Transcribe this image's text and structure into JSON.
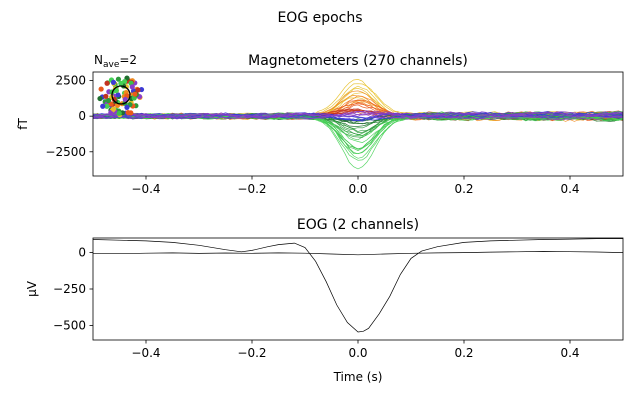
{
  "figure": {
    "suptitle": "EOG epochs"
  },
  "chart_data": [
    {
      "type": "line",
      "title": "Magnetometers (270 channels)",
      "nave_label": {
        "prefix": "N",
        "subscript": "ave",
        "suffix": "=2"
      },
      "xlabel": "",
      "ylabel": "fT",
      "xlim": [
        -0.5,
        0.5
      ],
      "ylim": [
        -4200,
        3100
      ],
      "xticks": [
        -0.4,
        -0.2,
        0.0,
        0.2,
        0.4
      ],
      "xtick_labels": [
        "−0.4",
        "−0.2",
        "0.0",
        "0.2",
        "0.4"
      ],
      "yticks": [
        2500,
        0,
        -2500
      ],
      "ytick_labels": [
        "2500",
        "0",
        "−2500"
      ],
      "grid": false,
      "legend": "none",
      "sensor_map": "color-coded sensor location inset, top-left",
      "n_channels": 270,
      "series_summary": [
        {
          "color": "#e7c028",
          "peak_fT": 2500,
          "peak_time": 0.0
        },
        {
          "color": "#ef8a1d",
          "peak_fT": 1700,
          "peak_time": 0.0
        },
        {
          "color": "#ea5a1c",
          "peak_fT": 1000,
          "peak_time": 0.0
        },
        {
          "color": "#c2341f",
          "peak_fT": 500,
          "peak_time": 0.0
        },
        {
          "color": "#1f6f2e",
          "peak_fT": -600,
          "peak_time": 0.0
        },
        {
          "color": "#2c9a3c",
          "peak_fT": -1500,
          "peak_time": 0.0
        },
        {
          "color": "#3cc04a",
          "peak_fT": -2800,
          "peak_time": 0.0
        },
        {
          "color": "#45d155",
          "peak_fT": -3500,
          "peak_time": 0.0
        },
        {
          "color": "#3b3bd6",
          "peak_fT": -300,
          "peak_time": 0.0
        },
        {
          "color": "#8a3ec8",
          "peak_fT": 200,
          "peak_time": 0.0
        }
      ]
    },
    {
      "type": "line",
      "title": "EOG (2 channels)",
      "xlabel": "Time (s)",
      "ylabel": "µV",
      "xlim": [
        -0.5,
        0.5
      ],
      "ylim": [
        -600,
        100
      ],
      "xticks": [
        -0.4,
        -0.2,
        0.0,
        0.2,
        0.4
      ],
      "xtick_labels": [
        "−0.4",
        "−0.2",
        "0.0",
        "0.2",
        "0.4"
      ],
      "yticks": [
        0,
        -250,
        -500
      ],
      "ytick_labels": [
        "0",
        "−250",
        "−500"
      ],
      "grid": false,
      "legend": "none",
      "series": [
        {
          "color": "#000000",
          "x": [
            -0.5,
            -0.45,
            -0.4,
            -0.35,
            -0.3,
            -0.25,
            -0.22,
            -0.2,
            -0.17,
            -0.15,
            -0.12,
            -0.1,
            -0.08,
            -0.06,
            -0.04,
            -0.02,
            0.0,
            0.01,
            0.02,
            0.04,
            0.06,
            0.08,
            0.1,
            0.12,
            0.15,
            0.2,
            0.25,
            0.3,
            0.35,
            0.4,
            0.45,
            0.5
          ],
          "y": [
            90,
            85,
            80,
            70,
            50,
            20,
            5,
            15,
            40,
            55,
            65,
            35,
            -60,
            -200,
            -360,
            -480,
            -545,
            -540,
            -520,
            -420,
            -300,
            -150,
            -40,
            10,
            40,
            70,
            80,
            85,
            90,
            92,
            95,
            95
          ]
        },
        {
          "color": "#000000",
          "x": [
            -0.5,
            -0.45,
            -0.4,
            -0.35,
            -0.3,
            -0.25,
            -0.2,
            -0.15,
            -0.1,
            -0.05,
            0.0,
            0.05,
            0.1,
            0.15,
            0.2,
            0.25,
            0.3,
            0.35,
            0.4,
            0.45,
            0.5
          ],
          "y": [
            -5,
            -8,
            -4,
            -2,
            -6,
            -3,
            -5,
            -2,
            -4,
            -10,
            -15,
            -10,
            -5,
            -2,
            0,
            3,
            5,
            8,
            6,
            4,
            0
          ]
        }
      ]
    }
  ]
}
